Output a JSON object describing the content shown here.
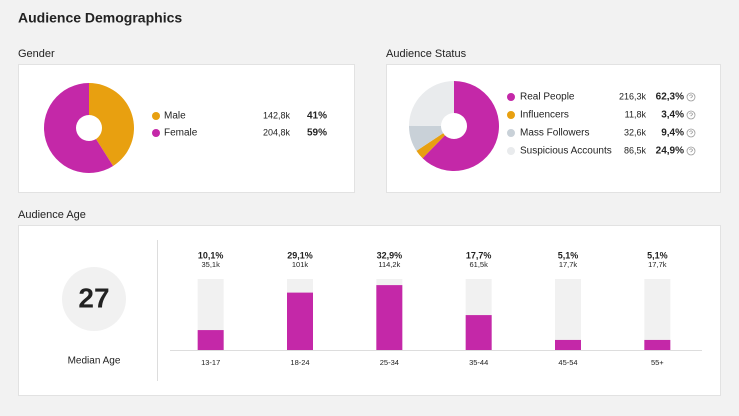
{
  "title": "Audience Demographics",
  "chart_data": [
    {
      "type": "pie",
      "title": "Gender",
      "categories": [
        "Male",
        "Female"
      ],
      "values": [
        41,
        59
      ],
      "value_labels": [
        "41%",
        "59%"
      ],
      "counts": [
        142800,
        204800
      ],
      "count_labels": [
        "142,8k",
        "204,8k"
      ],
      "colors": [
        "#e8a010",
        "#c428a8"
      ]
    },
    {
      "type": "pie",
      "title": "Audience Status",
      "categories": [
        "Real People",
        "Influencers",
        "Mass Followers",
        "Suspicious Accounts"
      ],
      "values": [
        62.3,
        3.4,
        9.4,
        24.9
      ],
      "value_labels": [
        "62,3%",
        "3,4%",
        "9,4%",
        "24,9%"
      ],
      "counts": [
        216300,
        11800,
        32600,
        86500
      ],
      "count_labels": [
        "216,3k",
        "11,8k",
        "32,6k",
        "86,5k"
      ],
      "colors": [
        "#c428a8",
        "#e8a010",
        "#c9d1d8",
        "#e9ebed"
      ]
    },
    {
      "type": "bar",
      "title": "Audience Age",
      "median": {
        "value": 27,
        "label": "Median Age"
      },
      "categories": [
        "13-17",
        "18-24",
        "25-34",
        "35-44",
        "45-54",
        "55+"
      ],
      "values": [
        10.1,
        29.1,
        32.9,
        17.7,
        5.1,
        5.1
      ],
      "value_labels": [
        "10,1%",
        "29,1%",
        "32,9%",
        "17,7%",
        "5,1%",
        "5,1%"
      ],
      "counts": [
        35100,
        101000,
        114200,
        61500,
        17700,
        17700
      ],
      "count_labels": [
        "35,1k",
        "101k",
        "114,2k",
        "61,5k",
        "17,7k",
        "17,7k"
      ],
      "color": "#c428a8",
      "ylim": [
        0,
        36
      ]
    }
  ]
}
